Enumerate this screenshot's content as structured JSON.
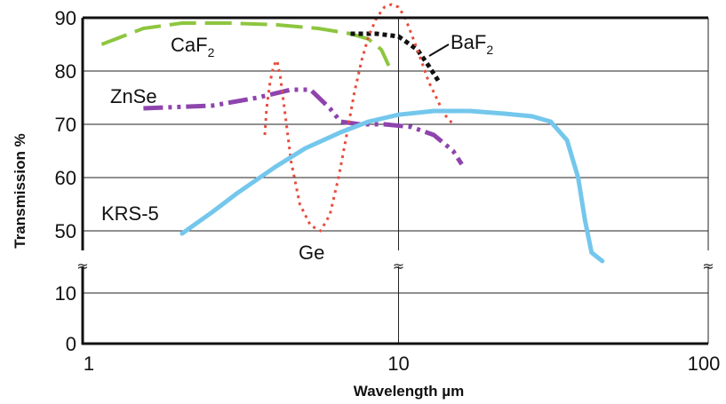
{
  "chart_data": {
    "type": "line",
    "xlabel": "Wavelength µm",
    "ylabel": "Transmission %",
    "x_scale": "log",
    "xlim": [
      1,
      100
    ],
    "x_ticks": [
      "1",
      "10",
      "100"
    ],
    "y_ticks_upper": [
      "90",
      "80",
      "70",
      "60",
      "50"
    ],
    "y_ticks_lower": [
      "10",
      "0"
    ],
    "y_break": "≈",
    "grid": true,
    "series": [
      {
        "name": "CaF2",
        "label_main": "CaF",
        "label_sub": "2",
        "color": "#8dc63f",
        "style": "long-dash",
        "x": [
          1.1,
          1.5,
          2.0,
          2.8,
          4.0,
          5.5,
          7.0,
          8.0,
          8.8,
          9.3
        ],
        "y": [
          85,
          88,
          89,
          89,
          88.7,
          88,
          87,
          86,
          84,
          81
        ]
      },
      {
        "name": "BaF2",
        "label_main": "BaF",
        "label_sub": "2",
        "color": "#111111",
        "style": "dotted",
        "x": [
          7.0,
          8.5,
          10.0,
          11.5,
          12.5,
          13.5
        ],
        "y": [
          87,
          87,
          86.5,
          84,
          81,
          78
        ]
      },
      {
        "name": "ZnSe",
        "color": "#8e44ad",
        "style": "dash-dot-dot",
        "x": [
          1.5,
          2.5,
          3.5,
          4.5,
          5.2,
          6.0,
          6.5,
          7.5,
          9.0,
          11.0,
          13.0,
          15.0,
          16.0
        ],
        "y": [
          73,
          73.5,
          75,
          76.5,
          76.5,
          73,
          70.5,
          70,
          70,
          69.5,
          68,
          65,
          62.5
        ]
      },
      {
        "name": "Ge",
        "color": "#e74c3c",
        "style": "dotted",
        "x": [
          3.7,
          3.75,
          3.85,
          3.95,
          4.05,
          4.15,
          4.3,
          4.5,
          4.8,
          5.2,
          5.6,
          6.0,
          6.4,
          6.8,
          7.2,
          7.6,
          8.0,
          8.5,
          9.0,
          9.5,
          10.0,
          10.5,
          11.0,
          11.5,
          12.0,
          12.5,
          13.0,
          13.5,
          14.0,
          14.5,
          15.0
        ],
        "y": [
          68,
          73,
          78,
          81,
          82,
          79,
          72,
          63,
          55,
          51,
          50,
          53,
          60,
          68,
          76,
          82,
          86.5,
          90,
          92,
          92.5,
          92,
          90,
          87,
          84,
          81,
          78,
          76,
          74,
          72,
          71,
          70
        ]
      },
      {
        "name": "KRS-5",
        "color": "#74c7ec",
        "style": "solid",
        "x": [
          2.0,
          2.5,
          3.0,
          4.0,
          5.0,
          6.5,
          8.0,
          10.0,
          13.0,
          17.0,
          22.0,
          27.0,
          31.0,
          35.0,
          38.0,
          40.0,
          42.0,
          44.0,
          45.5
        ],
        "y": [
          49.5,
          53.5,
          57,
          62,
          65.5,
          68.5,
          70.5,
          71.8,
          72.5,
          72.5,
          72,
          71.5,
          70.5,
          67,
          60,
          52,
          42,
          28,
          18
        ]
      }
    ]
  }
}
